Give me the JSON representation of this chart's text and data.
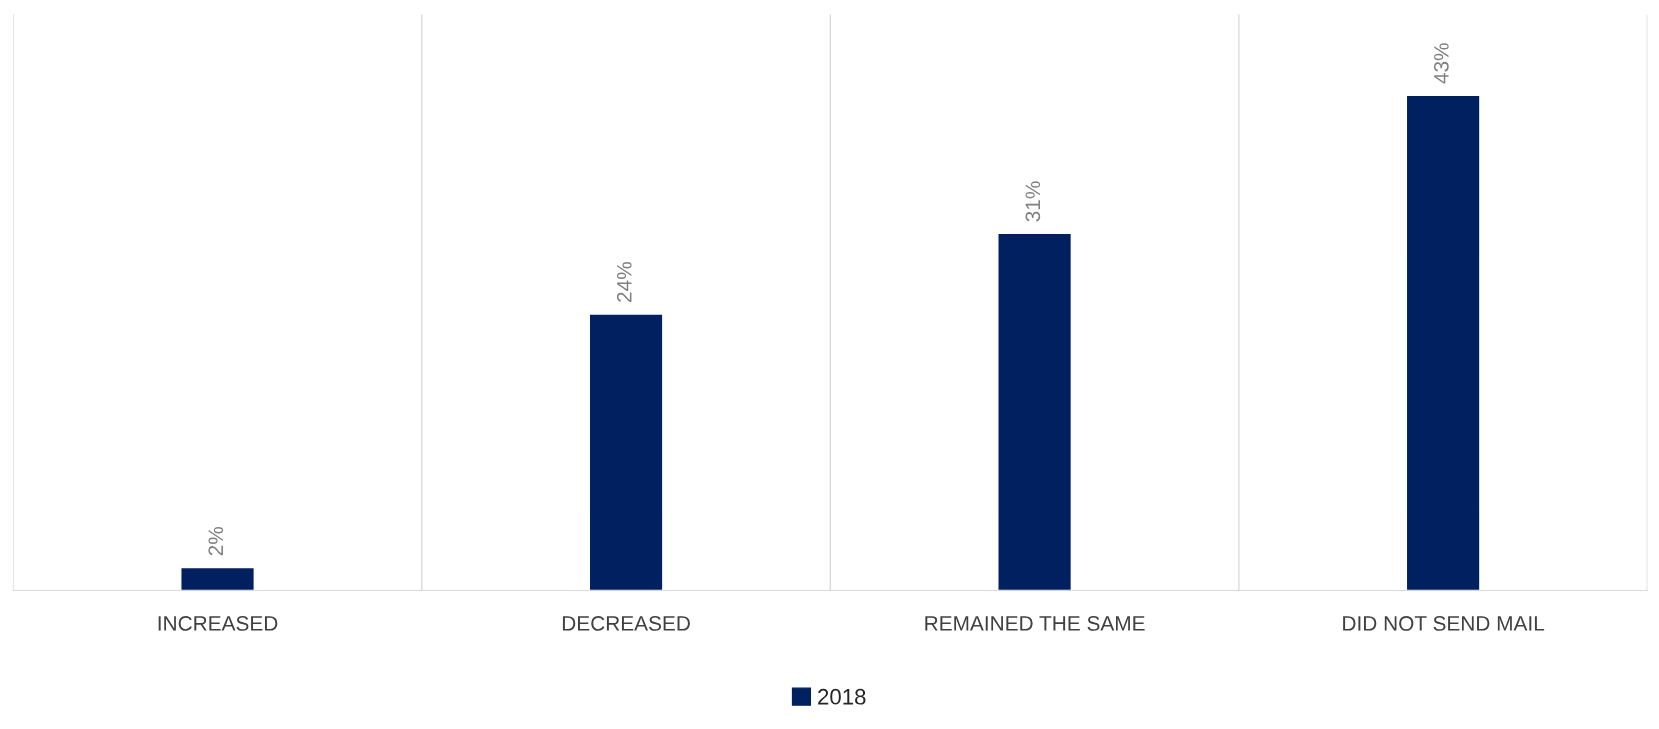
{
  "chart_data": {
    "type": "bar",
    "categories": [
      "INCREASED",
      "DECREASED",
      "REMAINED THE SAME",
      "DID NOT SEND MAIL"
    ],
    "series": [
      {
        "name": "2018",
        "color": "#002060",
        "values": [
          2,
          24,
          31,
          43
        ],
        "value_labels": [
          "2%",
          "24%",
          "31%",
          "43%"
        ]
      }
    ],
    "ylim": [
      0,
      50
    ],
    "tick_labels": "x",
    "grid": "x",
    "legend": "bottom"
  }
}
